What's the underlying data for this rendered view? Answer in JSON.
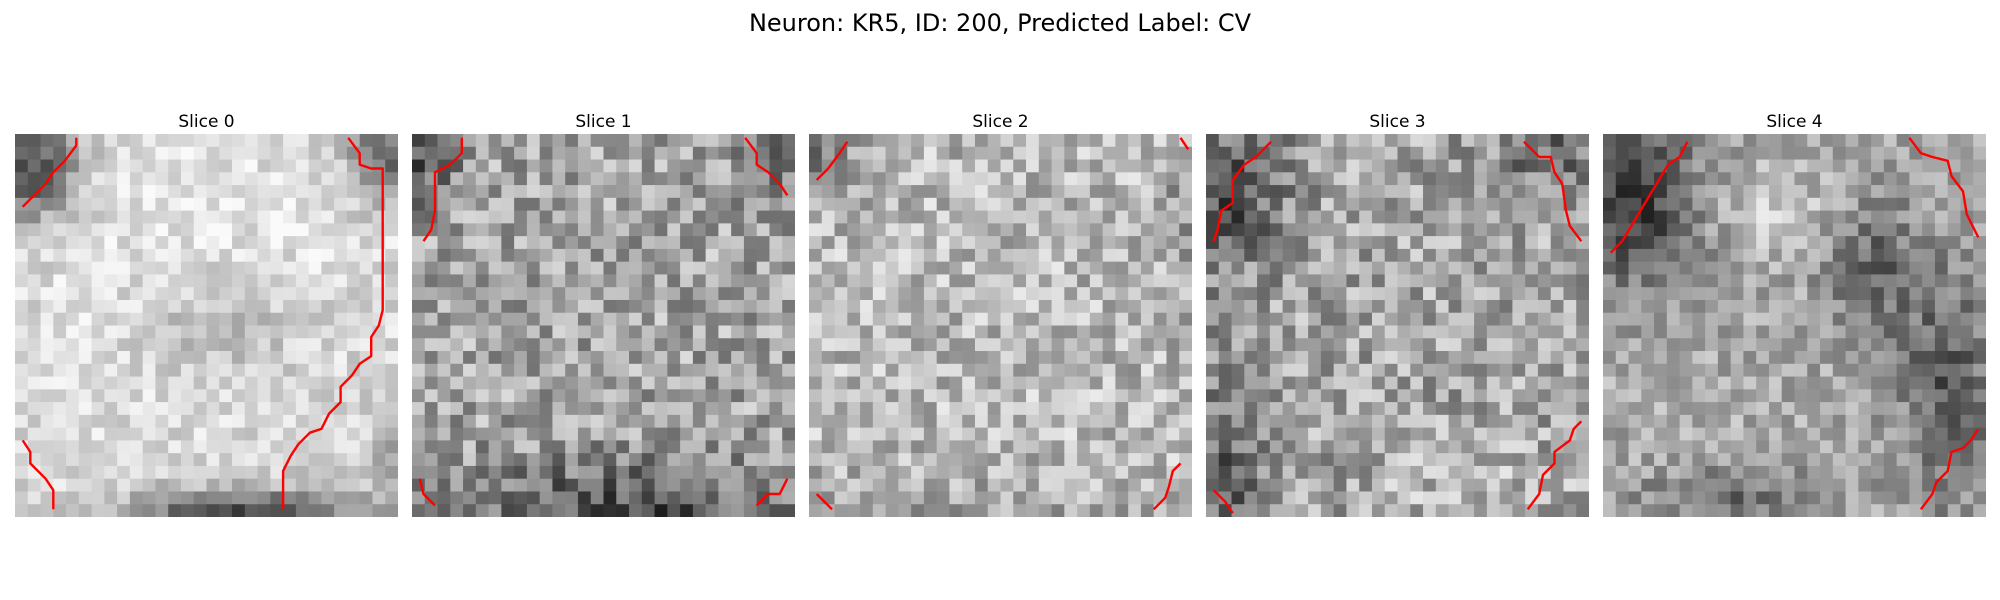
{
  "figure": {
    "title": "Neuron: KR5, ID: 200, Predicted Label: CV"
  },
  "panels": [
    {
      "title": "Slice 0",
      "overall_tone": "light grey centre, darker patches at top corners and bottom edge"
    },
    {
      "title": "Slice 1",
      "overall_tone": "medium grey noise, darker band along bottom"
    },
    {
      "title": "Slice 2",
      "overall_tone": "light to medium grey noise, fairly uniform"
    },
    {
      "title": "Slice 3",
      "overall_tone": "medium grey noise, darker top-left and bottom-left"
    },
    {
      "title": "Slice 4",
      "overall_tone": "medium grey, darker top-left and right side"
    }
  ],
  "colors": {
    "contour": "#ff0000"
  }
}
